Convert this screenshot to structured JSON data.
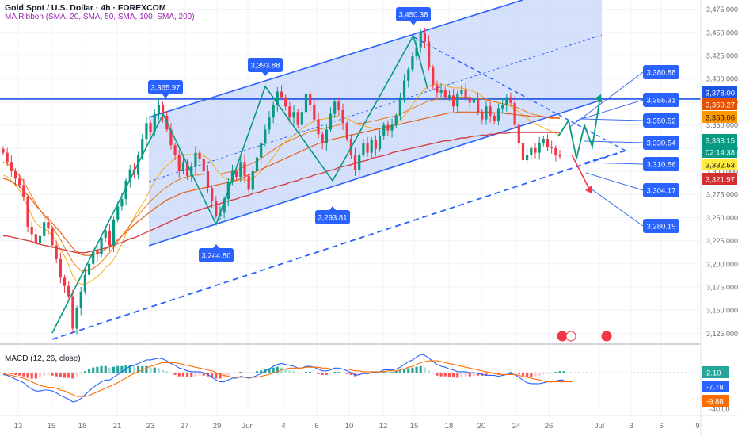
{
  "legend": {
    "symbol": "Gold Spot / U.S. Dollar · 4h · FOREXCOM",
    "indicator": "MA Ribbon (SMA, 20, SMA, 50, SMA, 100, SMA, 200)"
  },
  "colors": {
    "up": "#089981",
    "down": "#f23645",
    "channel_fill": "#b3c7f7",
    "channel_line": "#2962ff",
    "zigzag": "#089981",
    "resistance": "#1e53e5",
    "ma20": "#f7a600",
    "ma50": "#ef6c00",
    "ma100": "#e65100",
    "ma200": "#d32f2f",
    "macd_line": "#2962ff",
    "signal_line": "#ff6d00",
    "label_bg": "#2962ff"
  },
  "chart_data": {
    "type": "candlestick",
    "price_axis": {
      "range": [
        3115,
        3485
      ],
      "ticks": [
        3125,
        3150,
        3175,
        3200,
        3225,
        3250,
        3275,
        3300,
        3325,
        3350,
        3375,
        3400,
        3425,
        3450,
        3475
      ]
    },
    "date_axis": {
      "ticks": [
        "13",
        "15",
        "18",
        "21",
        "23",
        "27",
        "29",
        "Jun",
        "4",
        "6",
        "10",
        "12",
        "15",
        "18",
        "20",
        "24",
        "26",
        "Jul",
        "3",
        "6",
        "9"
      ]
    },
    "closes": [
      3320,
      3310,
      3300,
      3292,
      3285,
      3272,
      3240,
      3232,
      3222,
      3230,
      3245,
      3238,
      3220,
      3205,
      3185,
      3176,
      3165,
      3130,
      3152,
      3170,
      3188,
      3200,
      3214,
      3210,
      3228,
      3236,
      3220,
      3248,
      3262,
      3270,
      3290,
      3302,
      3296,
      3318,
      3335,
      3352,
      3342,
      3362,
      3372,
      3360,
      3345,
      3328,
      3318,
      3300,
      3310,
      3295,
      3305,
      3320,
      3313,
      3300,
      3282,
      3268,
      3252,
      3255,
      3270,
      3288,
      3300,
      3294,
      3310,
      3295,
      3280,
      3300,
      3315,
      3330,
      3345,
      3358,
      3372,
      3386,
      3380,
      3370,
      3358,
      3364,
      3350,
      3364,
      3384,
      3372,
      3356,
      3340,
      3330,
      3345,
      3362,
      3375,
      3366,
      3352,
      3335,
      3318,
      3301,
      3318,
      3330,
      3320,
      3334,
      3324,
      3338,
      3350,
      3344,
      3350,
      3360,
      3380,
      3398,
      3410,
      3424,
      3434,
      3450,
      3440,
      3412,
      3393,
      3385,
      3388,
      3380,
      3382,
      3370,
      3384,
      3388,
      3380,
      3374,
      3378,
      3364,
      3356,
      3370,
      3360,
      3354,
      3368,
      3372,
      3380,
      3374,
      3350,
      3330,
      3312,
      3318,
      3325,
      3320,
      3330,
      3335,
      3326,
      3325,
      3318,
      3316
    ],
    "moving_averages": [
      {
        "name": "SMA 20",
        "values": [
          3296,
          3294,
          3290,
          3285,
          3279,
          3272,
          3262,
          3252,
          3244,
          3240,
          3238,
          3235,
          3230,
          3224,
          3216,
          3208,
          3199,
          3187,
          3181,
          3178,
          3178,
          3180,
          3183,
          3186,
          3190,
          3196,
          3199,
          3205,
          3213,
          3222,
          3232,
          3242,
          3250,
          3258,
          3264,
          3272,
          3281,
          3289,
          3296,
          3302,
          3306,
          3310,
          3314,
          3316,
          3318,
          3318,
          3318,
          3318,
          3318,
          3317,
          3314,
          3309,
          3302,
          3297,
          3293,
          3291,
          3291,
          3290,
          3291,
          3291,
          3290,
          3292,
          3296,
          3300,
          3304,
          3310,
          3315,
          3322,
          3328,
          3332,
          3335,
          3339,
          3342,
          3346,
          3349,
          3352,
          3354,
          3356,
          3356,
          3357,
          3358,
          3360,
          3359,
          3358,
          3357,
          3355,
          3352,
          3350,
          3349,
          3348,
          3347,
          3346,
          3346,
          3347,
          3348,
          3350,
          3352,
          3355,
          3360,
          3365,
          3372,
          3378,
          3384,
          3389,
          3392,
          3394,
          3394,
          3394,
          3393,
          3391,
          3390,
          3390,
          3390,
          3389,
          3388,
          3386,
          3384,
          3381,
          3378,
          3376,
          3375,
          3374,
          3373,
          3372,
          3370,
          3367,
          3364,
          3360,
          3357,
          3354,
          3351,
          3349,
          3347,
          3345,
          3343,
          3341,
          3339
        ]
      },
      {
        "name": "SMA 50",
        "values": [
          3310,
          3308,
          3305,
          3300,
          3295,
          3289,
          3281,
          3273,
          3265,
          3258,
          3252,
          3246,
          3240,
          3233,
          3226,
          3218,
          3210,
          3202,
          3197,
          3193,
          3192,
          3193,
          3195,
          3198,
          3202,
          3207,
          3212,
          3218,
          3224,
          3230,
          3236,
          3242,
          3248,
          3253,
          3258,
          3263,
          3268,
          3272,
          3276,
          3280,
          3283,
          3286,
          3289,
          3291,
          3293,
          3294,
          3295,
          3296,
          3296,
          3297,
          3297,
          3297,
          3297,
          3297,
          3298,
          3299,
          3300,
          3301,
          3303,
          3305,
          3307,
          3309,
          3311,
          3314,
          3317,
          3320,
          3323,
          3326,
          3329,
          3331,
          3333,
          3335,
          3337,
          3339,
          3341,
          3343,
          3344,
          3345,
          3346,
          3347,
          3348,
          3349,
          3350,
          3351,
          3351,
          3351,
          3351,
          3352,
          3352,
          3353,
          3354,
          3355,
          3356,
          3357,
          3358,
          3359,
          3360,
          3362,
          3364,
          3366,
          3368,
          3370,
          3372,
          3374,
          3376,
          3377,
          3378,
          3379,
          3379,
          3380,
          3380,
          3380,
          3380,
          3380,
          3380,
          3379,
          3379,
          3378,
          3377,
          3376,
          3375,
          3374,
          3373,
          3372,
          3371,
          3370,
          3368,
          3366,
          3364,
          3362,
          3361,
          3360,
          3359,
          3358,
          3357,
          3357,
          3357
        ]
      },
      {
        "name": "SMA 100",
        "values": [
          3292,
          3291,
          3289,
          3286,
          3283,
          3279,
          3274,
          3269,
          3263,
          3258,
          3253,
          3249,
          3244,
          3239,
          3234,
          3228,
          3223,
          3217,
          3213,
          3210,
          3209,
          3209,
          3210,
          3211,
          3213,
          3216,
          3219,
          3222,
          3226,
          3230,
          3234,
          3238,
          3242,
          3246,
          3249,
          3253,
          3256,
          3260,
          3263,
          3266,
          3269,
          3271,
          3273,
          3275,
          3277,
          3278,
          3279,
          3280,
          3281,
          3282,
          3283,
          3284,
          3285,
          3286,
          3287,
          3288,
          3289,
          3290,
          3292,
          3294,
          3296,
          3298,
          3300,
          3302,
          3304,
          3306,
          3308,
          3310,
          3312,
          3314,
          3316,
          3318,
          3320,
          3322,
          3324,
          3326,
          3328,
          3330,
          3331,
          3333,
          3334,
          3335,
          3336,
          3337,
          3338,
          3339,
          3340,
          3341,
          3342,
          3343,
          3344,
          3345,
          3346,
          3347,
          3348,
          3349,
          3350,
          3351,
          3352,
          3353,
          3354,
          3355,
          3356,
          3357,
          3358,
          3359,
          3360,
          3361,
          3362,
          3363,
          3363,
          3364,
          3364,
          3364,
          3364,
          3364,
          3364,
          3364,
          3364,
          3364,
          3363,
          3363,
          3363,
          3362,
          3362,
          3361,
          3361,
          3360,
          3360,
          3359,
          3359,
          3359,
          3359,
          3358,
          3358,
          3358,
          3358
        ]
      },
      {
        "name": "SMA 200",
        "values": [
          3230,
          3230,
          3229,
          3228,
          3227,
          3226,
          3225,
          3224,
          3222,
          3221,
          3220,
          3219,
          3218,
          3217,
          3216,
          3215,
          3214,
          3213,
          3212,
          3212,
          3212,
          3213,
          3214,
          3215,
          3216,
          3217,
          3219,
          3220,
          3222,
          3223,
          3225,
          3227,
          3228,
          3230,
          3232,
          3234,
          3236,
          3238,
          3240,
          3242,
          3244,
          3246,
          3248,
          3250,
          3252,
          3253,
          3255,
          3257,
          3258,
          3260,
          3261,
          3263,
          3264,
          3265,
          3267,
          3268,
          3269,
          3270,
          3272,
          3273,
          3274,
          3276,
          3277,
          3278,
          3280,
          3281,
          3282,
          3284,
          3285,
          3286,
          3288,
          3289,
          3290,
          3292,
          3293,
          3294,
          3296,
          3297,
          3298,
          3300,
          3301,
          3302,
          3304,
          3305,
          3306,
          3307,
          3309,
          3310,
          3311,
          3312,
          3314,
          3315,
          3316,
          3317,
          3318,
          3320,
          3321,
          3322,
          3323,
          3324,
          3325,
          3326,
          3327,
          3328,
          3329,
          3330,
          3331,
          3332,
          3333,
          3333,
          3334,
          3335,
          3336,
          3336,
          3337,
          3338,
          3338,
          3339,
          3339,
          3340,
          3340,
          3341,
          3341,
          3341,
          3342,
          3342,
          3342,
          3342,
          3342,
          3342,
          3342,
          3342,
          3342,
          3342,
          3342,
          3342,
          3342
        ]
      }
    ],
    "zigzag_labels": [
      {
        "value": "3,365.97",
        "price": 3365.97
      },
      {
        "value": "3,244.80",
        "price": 3244.8
      },
      {
        "value": "3,393.88",
        "price": 3393.88
      },
      {
        "value": "3,293.81",
        "price": 3293.81
      },
      {
        "value": "3,450.38",
        "price": 3450.38
      }
    ],
    "resistance_level": 3378.0,
    "projection_targets": [
      "3,380.88",
      "3,355.31",
      "3,350.52",
      "3,330.54",
      "3,310.56",
      "3,304.17",
      "3,280.19"
    ],
    "price_badges": [
      {
        "text": "3,378.00",
        "bg": "#1e53e5",
        "fg": "#ffffff"
      },
      {
        "text": "3,360.27",
        "bg": "#e65100",
        "fg": "#ffffff"
      },
      {
        "text": "3,358.06",
        "bg": "#ff9800",
        "fg": "#131722"
      },
      {
        "text": "3,333.15",
        "bg": "#089981",
        "fg": "#ffffff"
      },
      {
        "text": "02:14:38",
        "bg": "#089981",
        "fg": "#ffffff"
      },
      {
        "text": "3,332.53",
        "bg": "#ffeb3b",
        "fg": "#131722"
      },
      {
        "text": "3,321.97",
        "bg": "#d32f2f",
        "fg": "#ffffff"
      }
    ]
  },
  "macd": {
    "label": "MACD (12, 26, close)",
    "range": [
      -45,
      20
    ],
    "ticks": [
      {
        "value": 0,
        "label": "0.00"
      },
      {
        "value": -40,
        "label": "-40.00"
      }
    ],
    "badges": [
      {
        "text": "2.10",
        "bg": "#26a69a",
        "fg": "#ffffff"
      },
      {
        "text": "-7.78",
        "bg": "#2962ff",
        "fg": "#ffffff"
      },
      {
        "text": "-9.88",
        "bg": "#ff6d00",
        "fg": "#ffffff"
      }
    ],
    "macd_line": [
      -2,
      -3,
      -5,
      -7,
      -9,
      -11,
      -15,
      -18,
      -20,
      -20,
      -19,
      -19,
      -20,
      -22,
      -25,
      -27,
      -29,
      -32,
      -31,
      -28,
      -24,
      -20,
      -16,
      -13,
      -10,
      -8,
      -8,
      -5,
      -2,
      1,
      4,
      7,
      8,
      10,
      12,
      14,
      14,
      15,
      16,
      15,
      13,
      10,
      8,
      5,
      4,
      2,
      1,
      1,
      1,
      0,
      -2,
      -5,
      -8,
      -10,
      -10,
      -8,
      -6,
      -6,
      -4,
      -5,
      -6,
      -5,
      -3,
      -1,
      2,
      4,
      7,
      9,
      10,
      9,
      8,
      7,
      5,
      5,
      7,
      7,
      6,
      4,
      2,
      2,
      3,
      5,
      5,
      4,
      2,
      0,
      -3,
      -2,
      -1,
      -1,
      0,
      0,
      1,
      3,
      3,
      3,
      4,
      6,
      9,
      12,
      14,
      17,
      20,
      19,
      16,
      12,
      9,
      7,
      6,
      4,
      3,
      1,
      1,
      1,
      0,
      0,
      -1,
      -2,
      -3,
      -3,
      -3,
      -4,
      -3,
      -2,
      -1,
      -2,
      -5,
      -8,
      -11,
      -12,
      -12,
      -12,
      -11,
      -10,
      -10,
      -9,
      -8,
      -8
    ],
    "signal_line": [
      -1,
      -2,
      -3,
      -4,
      -5,
      -6,
      -8,
      -10,
      -12,
      -14,
      -15,
      -16,
      -16,
      -17,
      -19,
      -20,
      -22,
      -24,
      -26,
      -26,
      -26,
      -25,
      -23,
      -21,
      -19,
      -17,
      -15,
      -13,
      -11,
      -8,
      -6,
      -3,
      -1,
      1,
      3,
      5,
      7,
      8,
      10,
      11,
      11,
      11,
      11,
      10,
      9,
      8,
      7,
      6,
      5,
      4,
      3,
      2,
      0,
      -2,
      -3,
      -4,
      -5,
      -5,
      -5,
      -5,
      -5,
      -5,
      -5,
      -4,
      -3,
      -2,
      0,
      1,
      3,
      4,
      5,
      5,
      5,
      5,
      6,
      6,
      6,
      6,
      5,
      5,
      4,
      4,
      4,
      4,
      4,
      3,
      2,
      2,
      1,
      1,
      1,
      1,
      1,
      1,
      2,
      2,
      2,
      3,
      4,
      6,
      7,
      9,
      11,
      12,
      13,
      13,
      13,
      12,
      11,
      10,
      9,
      8,
      7,
      6,
      5,
      4,
      3,
      2,
      1,
      0,
      -1,
      -1,
      -2,
      -2,
      -2,
      -2,
      -3,
      -4,
      -5,
      -6,
      -7,
      -8,
      -9,
      -10,
      -10,
      -10,
      -10,
      -10,
      -10,
      -10
    ]
  }
}
